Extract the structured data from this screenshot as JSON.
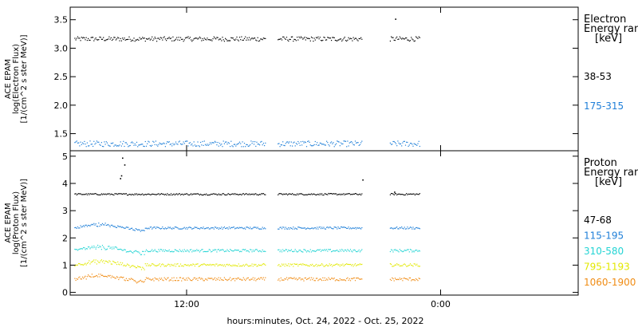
{
  "xlabel": "hours:minutes, Oct. 24, 2022 - Oct. 25, 2022",
  "chart_data": [
    {
      "type": "scatter",
      "panel": "electron",
      "ylabel_lines": [
        "ACE EPAM",
        "log(Electron Flux)",
        "[1/(cm^2 s ster MeV)]"
      ],
      "ylim": [
        1.2,
        3.72
      ],
      "yticks": [
        1.5,
        2.0,
        2.5,
        3.0,
        3.5
      ],
      "ytick_labels": [
        "1.5",
        "2.0",
        "2.5",
        "3.0",
        "3.5"
      ],
      "legend_title_lines": [
        "Electron",
        "Energy ran",
        "[keV]"
      ],
      "series": [
        {
          "name": "38-53",
          "color": "#000000",
          "level": 3.17,
          "jitter": 0.04,
          "spikes": [
            [
              21.85,
              3.52
            ]
          ]
        },
        {
          "name": "175-315",
          "color": "#1f7fd8",
          "level": 1.33,
          "jitter": 0.05
        }
      ]
    },
    {
      "type": "scatter",
      "panel": "proton",
      "ylabel_lines": [
        "ACE EPAM",
        "log(Proton Flux)",
        "[1/(cm^2 s ster MeV)]"
      ],
      "ylim": [
        -0.1,
        5.2
      ],
      "yticks": [
        0,
        1,
        2,
        3,
        4,
        5
      ],
      "ytick_labels": [
        "0",
        "1",
        "2",
        "3",
        "4",
        "5"
      ],
      "legend_title_lines": [
        "Proton",
        "Energy ran",
        "[keV]"
      ],
      "series": [
        {
          "name": "47-68",
          "color": "#000000",
          "level": 3.62,
          "jitter": 0.03,
          "spikes": [
            [
              8.95,
              4.95
            ],
            [
              9.05,
              4.7
            ],
            [
              8.9,
              4.3
            ],
            [
              8.85,
              4.2
            ],
            [
              20.3,
              4.15
            ],
            [
              21.8,
              3.7
            ]
          ]
        },
        {
          "name": "115-195",
          "color": "#1f7fd8",
          "level": 2.38,
          "jitter": 0.04
        },
        {
          "name": "310-580",
          "color": "#23d4d4",
          "level": 1.55,
          "jitter": 0.05
        },
        {
          "name": "795-1193",
          "color": "#e2e800",
          "level": 1.02,
          "jitter": 0.05
        },
        {
          "name": "1060-1900",
          "color": "#f08c14",
          "level": 0.5,
          "jitter": 0.06
        }
      ]
    }
  ],
  "x_axis": {
    "range_hours": [
      6.5,
      30.5
    ],
    "ticks": [
      12,
      24
    ],
    "tick_labels": [
      "12:00",
      "0:00"
    ],
    "data_segments": [
      [
        6.7,
        15.7
      ],
      [
        16.3,
        20.3
      ],
      [
        21.6,
        23.0
      ]
    ]
  }
}
